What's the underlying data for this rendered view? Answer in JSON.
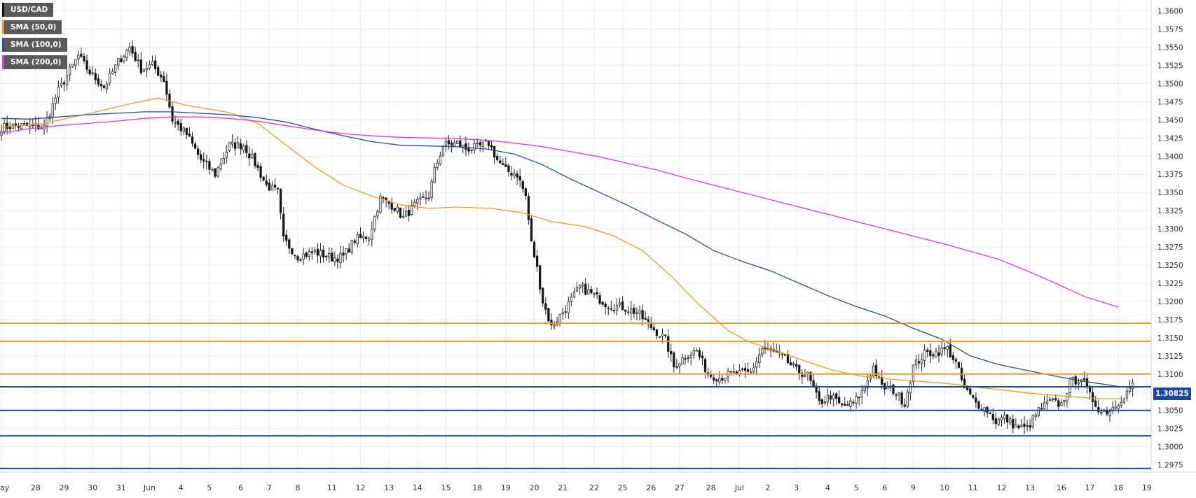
{
  "chart_data": {
    "type": "candlestick",
    "symbol": "USD/CAD",
    "ylim": [
      1.2965,
      1.3615
    ],
    "y_ticks": [
      "1.2975",
      "1.3000",
      "1.3025",
      "1.3050",
      "1.3075",
      "1.3100",
      "1.3125",
      "1.3150",
      "1.3175",
      "1.3200",
      "1.3225",
      "1.3250",
      "1.3275",
      "1.3300",
      "1.3325",
      "1.3350",
      "1.3375",
      "1.3400",
      "1.3425",
      "1.3450",
      "1.3475",
      "1.3500",
      "1.3525",
      "1.3550",
      "1.3575",
      "1.3600"
    ],
    "x_ticks": [
      {
        "i": 0,
        "label": "May"
      },
      {
        "i": 12,
        "label": "28"
      },
      {
        "i": 22,
        "label": "29"
      },
      {
        "i": 32,
        "label": "30"
      },
      {
        "i": 42,
        "label": "31"
      },
      {
        "i": 52,
        "label": "Jun"
      },
      {
        "i": 63,
        "label": "4"
      },
      {
        "i": 73,
        "label": "5"
      },
      {
        "i": 84,
        "label": "6"
      },
      {
        "i": 94,
        "label": "7"
      },
      {
        "i": 104,
        "label": "8"
      },
      {
        "i": 116,
        "label": "11"
      },
      {
        "i": 126,
        "label": "12"
      },
      {
        "i": 136,
        "label": "13"
      },
      {
        "i": 146,
        "label": "14"
      },
      {
        "i": 156,
        "label": "15"
      },
      {
        "i": 167,
        "label": "18"
      },
      {
        "i": 177,
        "label": "19"
      },
      {
        "i": 187,
        "label": "20"
      },
      {
        "i": 197,
        "label": "21"
      },
      {
        "i": 208,
        "label": "22"
      },
      {
        "i": 218,
        "label": "25"
      },
      {
        "i": 228,
        "label": "26"
      },
      {
        "i": 238,
        "label": "27"
      },
      {
        "i": 249,
        "label": "28"
      },
      {
        "i": 259,
        "label": "Jul"
      },
      {
        "i": 269,
        "label": "2"
      },
      {
        "i": 279,
        "label": "3"
      },
      {
        "i": 290,
        "label": "4"
      },
      {
        "i": 300,
        "label": "5"
      },
      {
        "i": 310,
        "label": "6"
      },
      {
        "i": 320,
        "label": "9"
      },
      {
        "i": 331,
        "label": "10"
      },
      {
        "i": 341,
        "label": "11"
      },
      {
        "i": 351,
        "label": "12"
      },
      {
        "i": 361,
        "label": "13"
      },
      {
        "i": 372,
        "label": "16"
      },
      {
        "i": 382,
        "label": "17"
      },
      {
        "i": 392,
        "label": "18"
      },
      {
        "i": 402,
        "label": "19"
      }
    ],
    "anchors": [
      [
        0,
        1.344
      ],
      [
        8,
        1.3442
      ],
      [
        15,
        1.344
      ],
      [
        20,
        1.349
      ],
      [
        27,
        1.3538
      ],
      [
        31,
        1.3515
      ],
      [
        36,
        1.3495
      ],
      [
        41,
        1.353
      ],
      [
        45,
        1.355
      ],
      [
        49,
        1.352
      ],
      [
        53,
        1.3525
      ],
      [
        57,
        1.3505
      ],
      [
        60,
        1.345
      ],
      [
        65,
        1.343
      ],
      [
        70,
        1.3395
      ],
      [
        75,
        1.3375
      ],
      [
        80,
        1.3415
      ],
      [
        85,
        1.3415
      ],
      [
        89,
        1.339
      ],
      [
        93,
        1.336
      ],
      [
        97,
        1.335
      ],
      [
        99,
        1.3285
      ],
      [
        104,
        1.3262
      ],
      [
        110,
        1.3268
      ],
      [
        116,
        1.326
      ],
      [
        120,
        1.3262
      ],
      [
        124,
        1.3285
      ],
      [
        129,
        1.329
      ],
      [
        133,
        1.3342
      ],
      [
        138,
        1.333
      ],
      [
        141,
        1.3315
      ],
      [
        145,
        1.3332
      ],
      [
        150,
        1.3345
      ],
      [
        152,
        1.338
      ],
      [
        155,
        1.3415
      ],
      [
        160,
        1.3418
      ],
      [
        163,
        1.341
      ],
      [
        167,
        1.3412
      ],
      [
        171,
        1.3418
      ],
      [
        174,
        1.3395
      ],
      [
        177,
        1.338
      ],
      [
        181,
        1.3375
      ],
      [
        184,
        1.3345
      ],
      [
        186,
        1.328
      ],
      [
        188,
        1.3245
      ],
      [
        190,
        1.32
      ],
      [
        193,
        1.3165
      ],
      [
        198,
        1.319
      ],
      [
        203,
        1.322
      ],
      [
        208,
        1.3208
      ],
      [
        213,
        1.3195
      ],
      [
        218,
        1.3192
      ],
      [
        223,
        1.3185
      ],
      [
        228,
        1.3165
      ],
      [
        233,
        1.3148
      ],
      [
        236,
        1.311
      ],
      [
        240,
        1.3125
      ],
      [
        244,
        1.3132
      ],
      [
        248,
        1.31
      ],
      [
        252,
        1.3095
      ],
      [
        256,
        1.31
      ],
      [
        263,
        1.3102
      ],
      [
        267,
        1.3135
      ],
      [
        271,
        1.313
      ],
      [
        275,
        1.312
      ],
      [
        279,
        1.3105
      ],
      [
        283,
        1.3098
      ],
      [
        287,
        1.306
      ],
      [
        291,
        1.307
      ],
      [
        295,
        1.3055
      ],
      [
        299,
        1.306
      ],
      [
        302,
        1.3075
      ],
      [
        306,
        1.311
      ],
      [
        309,
        1.3082
      ],
      [
        313,
        1.3078
      ],
      [
        317,
        1.306
      ],
      [
        320,
        1.311
      ],
      [
        324,
        1.3128
      ],
      [
        328,
        1.313
      ],
      [
        332,
        1.3135
      ],
      [
        335,
        1.3115
      ],
      [
        338,
        1.308
      ],
      [
        342,
        1.306
      ],
      [
        346,
        1.305
      ],
      [
        349,
        1.3035
      ],
      [
        352,
        1.304
      ],
      [
        356,
        1.3028
      ],
      [
        360,
        1.3025
      ],
      [
        364,
        1.305
      ],
      [
        368,
        1.3062
      ],
      [
        372,
        1.3058
      ],
      [
        375,
        1.3088
      ],
      [
        379,
        1.3095
      ],
      [
        382,
        1.307
      ],
      [
        386,
        1.3048
      ],
      [
        389,
        1.305
      ],
      [
        392,
        1.3062
      ],
      [
        395,
        1.3075
      ],
      [
        397,
        1.3088
      ]
    ],
    "series": [
      {
        "name": "SMA (50,0)",
        "color": "#f39a1e",
        "points": [
          [
            0,
            1.344
          ],
          [
            15,
            1.3445
          ],
          [
            30,
            1.3458
          ],
          [
            45,
            1.3472
          ],
          [
            55,
            1.348
          ],
          [
            65,
            1.347
          ],
          [
            80,
            1.346
          ],
          [
            90,
            1.3445
          ],
          [
            100,
            1.3415
          ],
          [
            110,
            1.3385
          ],
          [
            120,
            1.336
          ],
          [
            130,
            1.3345
          ],
          [
            140,
            1.3333
          ],
          [
            150,
            1.3328
          ],
          [
            160,
            1.333
          ],
          [
            172,
            1.3328
          ],
          [
            183,
            1.3322
          ],
          [
            193,
            1.331
          ],
          [
            205,
            1.3303
          ],
          [
            215,
            1.329
          ],
          [
            225,
            1.327
          ],
          [
            235,
            1.3235
          ],
          [
            245,
            1.3195
          ],
          [
            255,
            1.316
          ],
          [
            262,
            1.3145
          ],
          [
            272,
            1.3132
          ],
          [
            282,
            1.3118
          ],
          [
            292,
            1.3105
          ],
          [
            302,
            1.3097
          ],
          [
            312,
            1.3093
          ],
          [
            322,
            1.309
          ],
          [
            332,
            1.3087
          ],
          [
            342,
            1.3082
          ],
          [
            352,
            1.3078
          ],
          [
            360,
            1.3074
          ],
          [
            372,
            1.307
          ],
          [
            385,
            1.3066
          ],
          [
            393,
            1.3066
          ]
        ]
      },
      {
        "name": "SMA (100,0)",
        "color": "#1f4fa0",
        "points": [
          [
            0,
            1.3452
          ],
          [
            10,
            1.3451
          ],
          [
            20,
            1.3454
          ],
          [
            30,
            1.3457
          ],
          [
            40,
            1.3459
          ],
          [
            50,
            1.3461
          ],
          [
            60,
            1.3461
          ],
          [
            70,
            1.3459
          ],
          [
            80,
            1.3457
          ],
          [
            90,
            1.3453
          ],
          [
            100,
            1.3447
          ],
          [
            110,
            1.3437
          ],
          [
            120,
            1.3428
          ],
          [
            130,
            1.342
          ],
          [
            140,
            1.3415
          ],
          [
            150,
            1.3414
          ],
          [
            160,
            1.3413
          ],
          [
            170,
            1.341
          ],
          [
            180,
            1.3403
          ],
          [
            190,
            1.3388
          ],
          [
            200,
            1.3368
          ],
          [
            210,
            1.335
          ],
          [
            220,
            1.3332
          ],
          [
            230,
            1.3312
          ],
          [
            240,
            1.3293
          ],
          [
            250,
            1.327
          ],
          [
            260,
            1.3255
          ],
          [
            270,
            1.3242
          ],
          [
            280,
            1.3225
          ],
          [
            290,
            1.3208
          ],
          [
            300,
            1.3193
          ],
          [
            310,
            1.318
          ],
          [
            320,
            1.3163
          ],
          [
            330,
            1.3148
          ],
          [
            340,
            1.3125
          ],
          [
            350,
            1.3113
          ],
          [
            360,
            1.3105
          ],
          [
            370,
            1.3097
          ],
          [
            380,
            1.309
          ],
          [
            392,
            1.3083
          ]
        ]
      },
      {
        "name": "SMA (200,0)",
        "color": "#e332e3",
        "points": [
          [
            0,
            1.3432
          ],
          [
            10,
            1.3438
          ],
          [
            20,
            1.3442
          ],
          [
            30,
            1.3445
          ],
          [
            40,
            1.3448
          ],
          [
            50,
            1.3452
          ],
          [
            60,
            1.3454
          ],
          [
            70,
            1.3454
          ],
          [
            80,
            1.3452
          ],
          [
            90,
            1.3448
          ],
          [
            100,
            1.3442
          ],
          [
            110,
            1.3436
          ],
          [
            120,
            1.3431
          ],
          [
            130,
            1.3428
          ],
          [
            140,
            1.3426
          ],
          [
            150,
            1.3425
          ],
          [
            160,
            1.3424
          ],
          [
            170,
            1.3422
          ],
          [
            180,
            1.3418
          ],
          [
            190,
            1.3413
          ],
          [
            200,
            1.3406
          ],
          [
            210,
            1.3399
          ],
          [
            220,
            1.339
          ],
          [
            230,
            1.3381
          ],
          [
            240,
            1.337
          ],
          [
            250,
            1.336
          ],
          [
            260,
            1.335
          ],
          [
            270,
            1.334
          ],
          [
            280,
            1.333
          ],
          [
            290,
            1.332
          ],
          [
            300,
            1.331
          ],
          [
            310,
            1.33
          ],
          [
            320,
            1.329
          ],
          [
            330,
            1.328
          ],
          [
            340,
            1.3269
          ],
          [
            350,
            1.3258
          ],
          [
            360,
            1.3242
          ],
          [
            370,
            1.3225
          ],
          [
            380,
            1.3207
          ],
          [
            392,
            1.3192
          ]
        ]
      }
    ],
    "h_lines": [
      {
        "y": 1.317,
        "color": "#f39a1e"
      },
      {
        "y": 1.3145,
        "color": "#f39a1e"
      },
      {
        "y": 1.31,
        "color": "#f39a1e"
      },
      {
        "y": 1.30825,
        "color": "#1b4a9c"
      },
      {
        "y": 1.305,
        "color": "#1b4a9c"
      },
      {
        "y": 1.3015,
        "color": "#1b4a9c"
      },
      {
        "y": 1.297,
        "color": "#1b4a9c"
      }
    ],
    "last_price": "1.30825",
    "grid": true
  },
  "legend": [
    {
      "label": "USD/CAD",
      "color": "#111111"
    },
    {
      "label": "SMA (50,0)",
      "color": "#f39a1e"
    },
    {
      "label": "SMA (100,0)",
      "color": "#1f4fa0"
    },
    {
      "label": "SMA (200,0)",
      "color": "#e332e3"
    }
  ]
}
